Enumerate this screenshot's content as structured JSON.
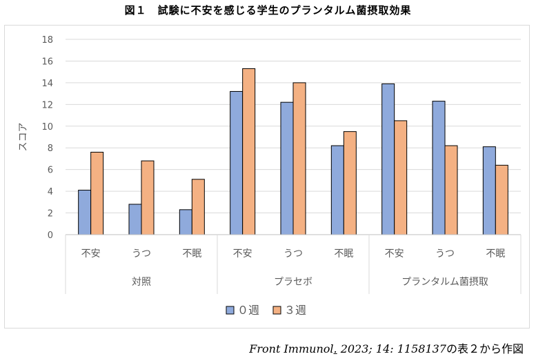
{
  "title": "図１　試験に不安を感じる学生のプランタルム菌摂取効果",
  "source": {
    "journal": "Front Immunol",
    "dot": ".",
    "citation": " 2023; 14: 1158137",
    "suffix": "の表２から作図"
  },
  "chart_data": {
    "type": "bar",
    "ylabel": "スコア",
    "ylim": [
      0,
      18
    ],
    "yticks": [
      0,
      2,
      4,
      6,
      8,
      10,
      12,
      14,
      16,
      18
    ],
    "grid": true,
    "legend_position": "bottom",
    "groups": [
      {
        "name": "対照",
        "categories": [
          "不安",
          "うつ",
          "不眠"
        ]
      },
      {
        "name": "プラセボ",
        "categories": [
          "不安",
          "うつ",
          "不眠"
        ]
      },
      {
        "name": "プランタルム菌摂取",
        "categories": [
          "不安",
          "うつ",
          "不眠"
        ]
      }
    ],
    "categories": [
      "不安",
      "うつ",
      "不眠",
      "不安",
      "うつ",
      "不眠",
      "不安",
      "うつ",
      "不眠"
    ],
    "series": [
      {
        "name": "０週",
        "color": "#8FAADC",
        "values": [
          4.1,
          2.8,
          2.3,
          13.2,
          12.2,
          8.2,
          13.9,
          12.3,
          8.1
        ]
      },
      {
        "name": "３週",
        "color": "#F4B183",
        "values": [
          7.6,
          6.8,
          5.1,
          15.3,
          14.0,
          9.5,
          10.5,
          8.2,
          6.4
        ]
      }
    ]
  }
}
